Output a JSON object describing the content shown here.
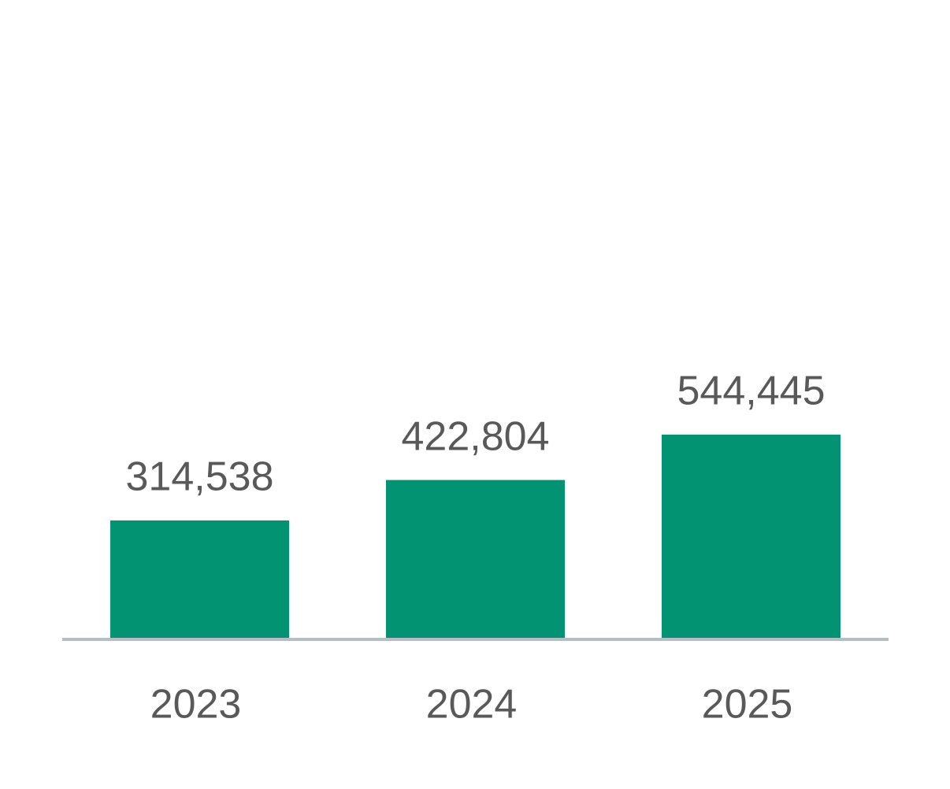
{
  "chart_data": {
    "type": "bar",
    "categories": [
      "2023",
      "2024",
      "2025"
    ],
    "values": [
      314538,
      422804,
      544445
    ],
    "value_labels": [
      "314,538",
      "422,804",
      "544,445"
    ],
    "color": "#029372"
  }
}
